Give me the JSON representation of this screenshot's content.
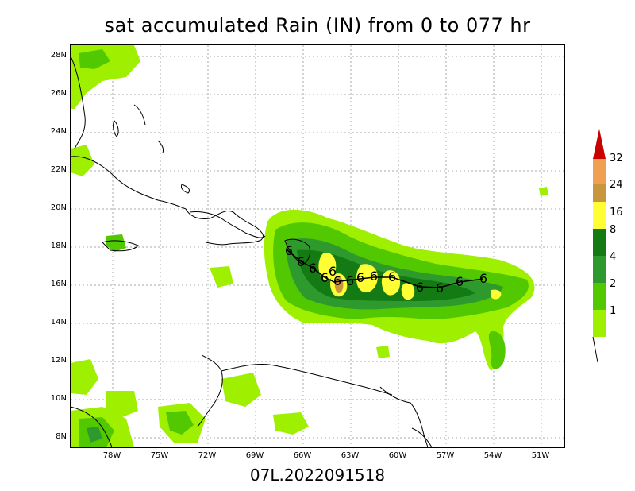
{
  "title": "sat accumulated Rain (IN) from 0 to 077 hr",
  "storm_id": "07L.2022091518",
  "axes": {
    "y_ticks": [
      "28N",
      "26N",
      "24N",
      "22N",
      "20N",
      "18N",
      "16N",
      "14N",
      "12N",
      "10N",
      "8N"
    ],
    "x_ticks": [
      "78W",
      "75W",
      "72W",
      "69W",
      "66W",
      "63W",
      "60W",
      "57W",
      "54W",
      "51W"
    ]
  },
  "legend": {
    "levels": [
      "1",
      "2",
      "4",
      "8",
      "16",
      "24",
      "32"
    ],
    "colors": [
      "#9ef000",
      "#52c800",
      "#2e9a2e",
      "#147a14",
      "#ffff33",
      "#c8963c",
      "#f0a050",
      "#c80000"
    ]
  },
  "track_symbol": "6"
}
